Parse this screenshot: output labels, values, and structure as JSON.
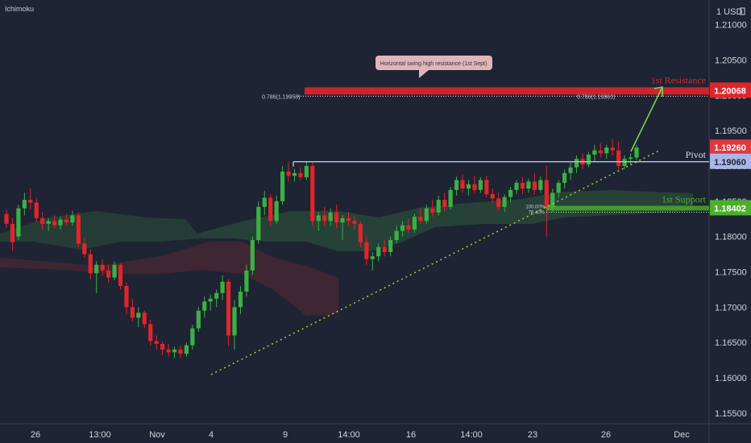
{
  "indicator_label": "Ichimoku",
  "currency_label": "1 USD",
  "currency_icon": "lock-icon",
  "colors": {
    "background": "#1e2433",
    "up": "#3cb043",
    "down": "#e0252b",
    "resistance": "#e0252b",
    "support": "#4caf2a",
    "pivot": "#aeb8e6",
    "cloud_green": "#2e5a3a",
    "cloud_red": "#5a2a32",
    "trendline": "#a8d23a",
    "axis_text": "#d1d4dc"
  },
  "chart_data": {
    "type": "candlestick",
    "ylim": [
      1.1535,
      1.2135
    ],
    "y_ticks": [
      "1.15500",
      "1.16000",
      "1.16500",
      "1.17000",
      "1.17500",
      "1.18000",
      "1.18500",
      "1.19000",
      "1.19500",
      "1.20000",
      "1.20500",
      "1.21000"
    ],
    "x_ticks": [
      "26",
      "13:00",
      "Nov",
      "4",
      "9",
      "14:00",
      "16",
      "14:00",
      "23",
      "26",
      "Dec"
    ],
    "levels": {
      "resistance": {
        "label": "1st Resistance",
        "value": 1.20068,
        "price_label": "1.20068"
      },
      "pivot": {
        "label": "Pivot",
        "value": 1.1906,
        "price_label": "1.19060"
      },
      "support": {
        "label": "1st Support",
        "value": 1.18402,
        "price_label": "1.18402"
      },
      "last_price": {
        "value": 1.1926,
        "price_label": "1.19260"
      }
    },
    "fib_labels": [
      "0.786(1.19958)",
      "0.786(1.19961)",
      "100.00%",
      "76.40%"
    ],
    "annotation": "Horizontal swing high resistance (1st Sept)",
    "candles": [
      {
        "o": 1.1832,
        "h": 1.1838,
        "l": 1.1812,
        "c": 1.1818
      },
      {
        "o": 1.1818,
        "h": 1.1826,
        "l": 1.178,
        "c": 1.1792
      },
      {
        "o": 1.18,
        "h": 1.1845,
        "l": 1.1795,
        "c": 1.184
      },
      {
        "o": 1.184,
        "h": 1.1862,
        "l": 1.183,
        "c": 1.1852
      },
      {
        "o": 1.1852,
        "h": 1.1868,
        "l": 1.1838,
        "c": 1.1848
      },
      {
        "o": 1.1848,
        "h": 1.1855,
        "l": 1.182,
        "c": 1.1826
      },
      {
        "o": 1.1826,
        "h": 1.1835,
        "l": 1.181,
        "c": 1.1818
      },
      {
        "o": 1.1818,
        "h": 1.1826,
        "l": 1.1808,
        "c": 1.1822
      },
      {
        "o": 1.1822,
        "h": 1.183,
        "l": 1.1812,
        "c": 1.1816
      },
      {
        "o": 1.1816,
        "h": 1.1828,
        "l": 1.181,
        "c": 1.1824
      },
      {
        "o": 1.1824,
        "h": 1.1832,
        "l": 1.1815,
        "c": 1.182
      },
      {
        "o": 1.182,
        "h": 1.1836,
        "l": 1.1815,
        "c": 1.183
      },
      {
        "o": 1.183,
        "h": 1.1834,
        "l": 1.1785,
        "c": 1.179
      },
      {
        "o": 1.179,
        "h": 1.1798,
        "l": 1.177,
        "c": 1.1775
      },
      {
        "o": 1.1775,
        "h": 1.1782,
        "l": 1.174,
        "c": 1.1748
      },
      {
        "o": 1.1748,
        "h": 1.1765,
        "l": 1.172,
        "c": 1.176
      },
      {
        "o": 1.176,
        "h": 1.1768,
        "l": 1.1745,
        "c": 1.1752
      },
      {
        "o": 1.1752,
        "h": 1.176,
        "l": 1.1735,
        "c": 1.1742
      },
      {
        "o": 1.1742,
        "h": 1.1765,
        "l": 1.1738,
        "c": 1.176
      },
      {
        "o": 1.176,
        "h": 1.1762,
        "l": 1.1725,
        "c": 1.173
      },
      {
        "o": 1.173,
        "h": 1.1735,
        "l": 1.169,
        "c": 1.17
      },
      {
        "o": 1.17,
        "h": 1.1712,
        "l": 1.168,
        "c": 1.1685
      },
      {
        "o": 1.1685,
        "h": 1.17,
        "l": 1.1672,
        "c": 1.1692
      },
      {
        "o": 1.1692,
        "h": 1.1695,
        "l": 1.167,
        "c": 1.1676
      },
      {
        "o": 1.1676,
        "h": 1.1682,
        "l": 1.1645,
        "c": 1.1652
      },
      {
        "o": 1.1652,
        "h": 1.166,
        "l": 1.164,
        "c": 1.1648
      },
      {
        "o": 1.1648,
        "h": 1.1652,
        "l": 1.1632,
        "c": 1.164
      },
      {
        "o": 1.164,
        "h": 1.1648,
        "l": 1.163,
        "c": 1.1636
      },
      {
        "o": 1.1636,
        "h": 1.1644,
        "l": 1.1628,
        "c": 1.164
      },
      {
        "o": 1.164,
        "h": 1.1646,
        "l": 1.1628,
        "c": 1.1634
      },
      {
        "o": 1.1634,
        "h": 1.165,
        "l": 1.163,
        "c": 1.1646
      },
      {
        "o": 1.1646,
        "h": 1.1675,
        "l": 1.164,
        "c": 1.167
      },
      {
        "o": 1.167,
        "h": 1.17,
        "l": 1.1665,
        "c": 1.1695
      },
      {
        "o": 1.1695,
        "h": 1.1715,
        "l": 1.1685,
        "c": 1.1708
      },
      {
        "o": 1.1708,
        "h": 1.1718,
        "l": 1.1695,
        "c": 1.1712
      },
      {
        "o": 1.1712,
        "h": 1.1725,
        "l": 1.17,
        "c": 1.172
      },
      {
        "o": 1.172,
        "h": 1.1745,
        "l": 1.171,
        "c": 1.1736
      },
      {
        "o": 1.1736,
        "h": 1.174,
        "l": 1.1645,
        "c": 1.166
      },
      {
        "o": 1.166,
        "h": 1.171,
        "l": 1.164,
        "c": 1.17
      },
      {
        "o": 1.17,
        "h": 1.173,
        "l": 1.169,
        "c": 1.1722
      },
      {
        "o": 1.1722,
        "h": 1.176,
        "l": 1.1715,
        "c": 1.1752
      },
      {
        "o": 1.1752,
        "h": 1.18,
        "l": 1.1745,
        "c": 1.1795
      },
      {
        "o": 1.1795,
        "h": 1.185,
        "l": 1.179,
        "c": 1.1842
      },
      {
        "o": 1.1842,
        "h": 1.1865,
        "l": 1.183,
        "c": 1.1855
      },
      {
        "o": 1.1855,
        "h": 1.186,
        "l": 1.1815,
        "c": 1.1822
      },
      {
        "o": 1.1822,
        "h": 1.1858,
        "l": 1.1818,
        "c": 1.185
      },
      {
        "o": 1.185,
        "h": 1.19,
        "l": 1.1845,
        "c": 1.1892
      },
      {
        "o": 1.1892,
        "h": 1.1905,
        "l": 1.1878,
        "c": 1.1886
      },
      {
        "o": 1.1886,
        "h": 1.1896,
        "l": 1.1878,
        "c": 1.189
      },
      {
        "o": 1.189,
        "h": 1.1898,
        "l": 1.188,
        "c": 1.1884
      },
      {
        "o": 1.1884,
        "h": 1.1906,
        "l": 1.188,
        "c": 1.19
      },
      {
        "o": 1.19,
        "h": 1.1905,
        "l": 1.1815,
        "c": 1.1822
      },
      {
        "o": 1.1822,
        "h": 1.1835,
        "l": 1.1808,
        "c": 1.183
      },
      {
        "o": 1.183,
        "h": 1.1842,
        "l": 1.1815,
        "c": 1.1822
      },
      {
        "o": 1.1822,
        "h": 1.184,
        "l": 1.1815,
        "c": 1.1834
      },
      {
        "o": 1.1834,
        "h": 1.1845,
        "l": 1.1812,
        "c": 1.182
      },
      {
        "o": 1.182,
        "h": 1.183,
        "l": 1.1795,
        "c": 1.1826
      },
      {
        "o": 1.1826,
        "h": 1.1835,
        "l": 1.1815,
        "c": 1.1822
      },
      {
        "o": 1.1822,
        "h": 1.183,
        "l": 1.181,
        "c": 1.1818
      },
      {
        "o": 1.1818,
        "h": 1.1822,
        "l": 1.1785,
        "c": 1.1792
      },
      {
        "o": 1.1792,
        "h": 1.18,
        "l": 1.176,
        "c": 1.1768
      },
      {
        "o": 1.1768,
        "h": 1.1778,
        "l": 1.1752,
        "c": 1.1772
      },
      {
        "o": 1.1772,
        "h": 1.179,
        "l": 1.1765,
        "c": 1.1785
      },
      {
        "o": 1.1785,
        "h": 1.1795,
        "l": 1.1772,
        "c": 1.1778
      },
      {
        "o": 1.1778,
        "h": 1.18,
        "l": 1.1772,
        "c": 1.1795
      },
      {
        "o": 1.1795,
        "h": 1.1815,
        "l": 1.179,
        "c": 1.1808
      },
      {
        "o": 1.1808,
        "h": 1.1822,
        "l": 1.18,
        "c": 1.1816
      },
      {
        "o": 1.1816,
        "h": 1.1825,
        "l": 1.1805,
        "c": 1.181
      },
      {
        "o": 1.181,
        "h": 1.1832,
        "l": 1.1805,
        "c": 1.1828
      },
      {
        "o": 1.1828,
        "h": 1.184,
        "l": 1.1818,
        "c": 1.1822
      },
      {
        "o": 1.1822,
        "h": 1.1845,
        "l": 1.1818,
        "c": 1.184
      },
      {
        "o": 1.184,
        "h": 1.1852,
        "l": 1.1828,
        "c": 1.1834
      },
      {
        "o": 1.1834,
        "h": 1.1858,
        "l": 1.183,
        "c": 1.1852
      },
      {
        "o": 1.1852,
        "h": 1.1862,
        "l": 1.1835,
        "c": 1.1842
      },
      {
        "o": 1.1842,
        "h": 1.187,
        "l": 1.1838,
        "c": 1.1866
      },
      {
        "o": 1.1866,
        "h": 1.1885,
        "l": 1.1858,
        "c": 1.188
      },
      {
        "o": 1.188,
        "h": 1.1888,
        "l": 1.1862,
        "c": 1.1868
      },
      {
        "o": 1.1868,
        "h": 1.188,
        "l": 1.1858,
        "c": 1.1874
      },
      {
        "o": 1.1874,
        "h": 1.1886,
        "l": 1.1862,
        "c": 1.1866
      },
      {
        "o": 1.1866,
        "h": 1.1884,
        "l": 1.1862,
        "c": 1.188
      },
      {
        "o": 1.188,
        "h": 1.1886,
        "l": 1.1856,
        "c": 1.186
      },
      {
        "o": 1.186,
        "h": 1.1868,
        "l": 1.1848,
        "c": 1.1854
      },
      {
        "o": 1.1854,
        "h": 1.1862,
        "l": 1.1836,
        "c": 1.1842
      },
      {
        "o": 1.1842,
        "h": 1.186,
        "l": 1.1835,
        "c": 1.1856
      },
      {
        "o": 1.1856,
        "h": 1.187,
        "l": 1.1848,
        "c": 1.1866
      },
      {
        "o": 1.1866,
        "h": 1.188,
        "l": 1.186,
        "c": 1.1876
      },
      {
        "o": 1.1876,
        "h": 1.1884,
        "l": 1.186,
        "c": 1.1868
      },
      {
        "o": 1.1868,
        "h": 1.1882,
        "l": 1.1862,
        "c": 1.1878
      },
      {
        "o": 1.1878,
        "h": 1.189,
        "l": 1.186,
        "c": 1.1866
      },
      {
        "o": 1.1866,
        "h": 1.1885,
        "l": 1.1862,
        "c": 1.188
      },
      {
        "o": 1.188,
        "h": 1.19,
        "l": 1.18,
        "c": 1.184
      },
      {
        "o": 1.184,
        "h": 1.1868,
        "l": 1.1835,
        "c": 1.1862
      },
      {
        "o": 1.1862,
        "h": 1.188,
        "l": 1.1855,
        "c": 1.1876
      },
      {
        "o": 1.1876,
        "h": 1.1895,
        "l": 1.1868,
        "c": 1.189
      },
      {
        "o": 1.189,
        "h": 1.1905,
        "l": 1.188,
        "c": 1.1898
      },
      {
        "o": 1.1898,
        "h": 1.1915,
        "l": 1.189,
        "c": 1.191
      },
      {
        "o": 1.191,
        "h": 1.1918,
        "l": 1.1895,
        "c": 1.1902
      },
      {
        "o": 1.1902,
        "h": 1.192,
        "l": 1.1898,
        "c": 1.1916
      },
      {
        "o": 1.1916,
        "h": 1.193,
        "l": 1.1905,
        "c": 1.1922
      },
      {
        "o": 1.1922,
        "h": 1.1932,
        "l": 1.1912,
        "c": 1.1918
      },
      {
        "o": 1.1918,
        "h": 1.193,
        "l": 1.191,
        "c": 1.1926
      },
      {
        "o": 1.1926,
        "h": 1.1938,
        "l": 1.1915,
        "c": 1.1922
      },
      {
        "o": 1.1922,
        "h": 1.1935,
        "l": 1.1895,
        "c": 1.19
      },
      {
        "o": 1.19,
        "h": 1.1915,
        "l": 1.1895,
        "c": 1.191
      },
      {
        "o": 1.191,
        "h": 1.1918,
        "l": 1.1902,
        "c": 1.1912
      },
      {
        "o": 1.1912,
        "h": 1.193,
        "l": 1.1908,
        "c": 1.1926
      }
    ]
  }
}
